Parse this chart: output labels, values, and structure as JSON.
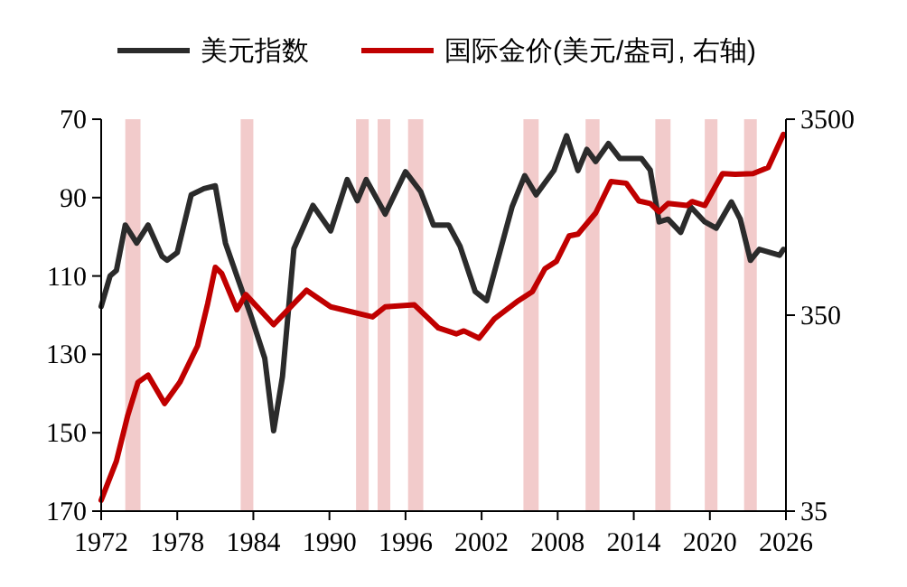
{
  "chart_data": {
    "type": "line",
    "legend": "top",
    "xlim": [
      1972,
      2026
    ],
    "xticks": [
      1972,
      1978,
      1984,
      1990,
      1996,
      2002,
      2008,
      2014,
      2020,
      2026
    ],
    "ylim": [
      170,
      70
    ],
    "yticks": [
      70,
      90,
      110,
      130,
      150,
      170
    ],
    "y2lim": [
      35,
      3500
    ],
    "y2ticks": [
      35,
      350,
      3500
    ],
    "log": "y2",
    "bands": [
      {
        "axis": "x",
        "from": 1973.9,
        "to": 1975.1,
        "color": "#f2cbcb"
      },
      {
        "axis": "x",
        "from": 1983.0,
        "to": 1984.0,
        "color": "#f2cbcb"
      },
      {
        "axis": "x",
        "from": 1992.1,
        "to": 1993.1,
        "color": "#f2cbcb"
      },
      {
        "axis": "x",
        "from": 1993.8,
        "to": 1994.8,
        "color": "#f2cbcb"
      },
      {
        "axis": "x",
        "from": 1996.2,
        "to": 1997.4,
        "color": "#f2cbcb"
      },
      {
        "axis": "x",
        "from": 2005.3,
        "to": 2006.5,
        "color": "#f2cbcb"
      },
      {
        "axis": "x",
        "from": 2010.2,
        "to": 2011.3,
        "color": "#f2cbcb"
      },
      {
        "axis": "x",
        "from": 2015.7,
        "to": 2016.9,
        "color": "#f2cbcb"
      },
      {
        "axis": "x",
        "from": 2019.6,
        "to": 2020.6,
        "color": "#f2cbcb"
      },
      {
        "axis": "x",
        "from": 2022.7,
        "to": 2023.7,
        "color": "#f2cbcb"
      }
    ],
    "series": [
      {
        "name": "美元指数",
        "color": "#2b2b2b",
        "x": [
          1972,
          1972.7,
          1973.2,
          1973.9,
          1974.8,
          1975.7,
          1976.8,
          1977.2,
          1978,
          1979.1,
          1980.1,
          1981,
          1981.8,
          1982.7,
          1983.9,
          1984.9,
          1985.6,
          1986.3,
          1987.2,
          1988.7,
          1990.1,
          1991.4,
          1992.2,
          1992.9,
          1994.4,
          1996,
          1997.2,
          1998.2,
          1999.4,
          2000.3,
          2001.5,
          2002.4,
          2004.4,
          2005.4,
          2006.3,
          2007.7,
          2008.7,
          2009.6,
          2010.3,
          2011,
          2012,
          2012.9,
          2014.6,
          2015.3,
          2016,
          2016.7,
          2017.7,
          2018.5,
          2019.6,
          2020.5,
          2021.7,
          2022.4,
          2023.2,
          2023.9,
          2025.5,
          2025.8
        ],
        "values": [
          117.8,
          110,
          108.6,
          97,
          101.6,
          97,
          105,
          106,
          104,
          89.3,
          87.7,
          87,
          101.6,
          110,
          121,
          131,
          149.5,
          135.6,
          103,
          92,
          98.5,
          85.4,
          90.8,
          85.4,
          94.2,
          83.4,
          88.5,
          97,
          97,
          102.4,
          114,
          116.3,
          92.4,
          84.4,
          89.3,
          83.1,
          74.2,
          83.1,
          77.7,
          80.8,
          76.2,
          80,
          80,
          83,
          96.2,
          95.5,
          98.9,
          92.4,
          96.2,
          97.8,
          91.1,
          95.5,
          106,
          103.2,
          104.7,
          103.2
        ]
      },
      {
        "name": "国际金价(美元/盎司, 右轴)",
        "color": "#c00000",
        "axis": "y2",
        "x": [
          1972,
          1973.2,
          1974.1,
          1974.9,
          1975.7,
          1977,
          1978.2,
          1979.6,
          1980.4,
          1981,
          1981.5,
          1982.7,
          1983.4,
          1985.6,
          1988.2,
          1990.1,
          1993.4,
          1994.4,
          1996.7,
          1998.6,
          2000,
          2000.6,
          2001.8,
          2003,
          2004.9,
          2006,
          2007,
          2007.9,
          2008.9,
          2009.6,
          2011,
          2012.2,
          2013.4,
          2014.4,
          2015.3,
          2016,
          2016.7,
          2018.2,
          2018.6,
          2019.6,
          2021,
          2022,
          2023.4,
          2024.6,
          2025.8
        ],
        "values": [
          39.8,
          63,
          108,
          159,
          173,
          124,
          159,
          244,
          401,
          614,
          572,
          373,
          446,
          313,
          469,
          386,
          343,
          386,
          395,
          301,
          281,
          291,
          267,
          335,
          415,
          461,
          605,
          659,
          888,
          907,
          1164,
          1684,
          1650,
          1340,
          1300,
          1180,
          1300,
          1270,
          1330,
          1270,
          1846,
          1830,
          1846,
          1983,
          2930
        ]
      }
    ]
  }
}
